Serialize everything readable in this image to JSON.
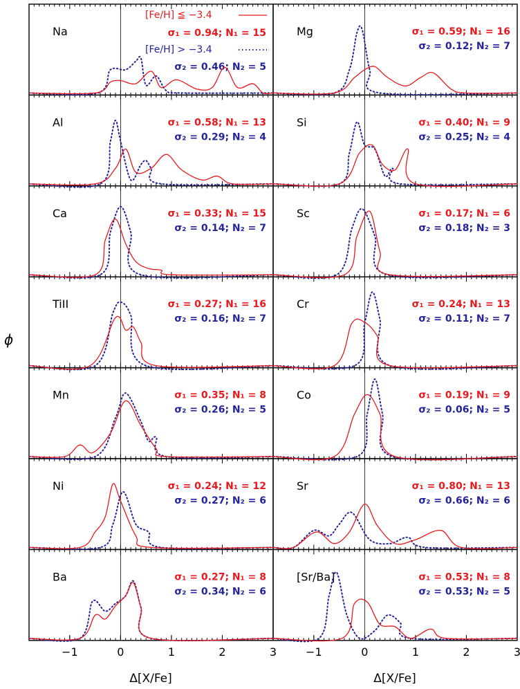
{
  "figure": {
    "ylabel": "ϕ",
    "xlabel": "Δ[X/Fe]",
    "xlim": [
      -1.8,
      3
    ],
    "x_ticks": [
      -1,
      0,
      1,
      2,
      3
    ],
    "x_tick_labels": [
      "−1",
      "0",
      "1",
      "2",
      "3"
    ],
    "colors": {
      "group1": "#e8191e",
      "group2": "#24249a",
      "frame": "#000000"
    },
    "legend": {
      "group1_label": "[Fe/H] ≦ −3.4",
      "group2_label": "[Fe/H] > −3.4"
    }
  },
  "chart_data": [
    {
      "type": "line",
      "element": "Na",
      "sigma1_text": "σ₁ = 0.94; N₁ = 15",
      "sigma2_text": "σ₂ = 0.46; N₂ =  5",
      "series": [
        {
          "x": [
            -0.5,
            -0.2,
            0.0,
            0.3,
            0.6,
            0.8,
            1.1,
            1.5,
            1.8,
            2.05,
            2.3,
            2.6,
            2.8
          ],
          "y": [
            0.0,
            0.14,
            0.16,
            0.12,
            0.28,
            0.07,
            0.17,
            0.05,
            0.07,
            0.33,
            0.07,
            0.12,
            0.0
          ]
        },
        {
          "x": [
            -0.45,
            -0.2,
            0.1,
            0.3,
            0.4,
            0.5,
            0.7,
            0.9,
            1.2
          ],
          "y": [
            0.0,
            0.3,
            0.3,
            0.41,
            0.45,
            0.1,
            0.22,
            0.03,
            0.0
          ]
        }
      ]
    },
    {
      "type": "line",
      "element": "Mg",
      "sigma1_text": "σ₁ = 0.59; N₁ = 16",
      "sigma2_text": "σ₂ = 0.12; N₂ =  7",
      "series": [
        {
          "x": [
            -0.6,
            -0.2,
            0.0,
            0.2,
            0.45,
            0.8,
            1.1,
            1.35,
            1.7,
            2.0
          ],
          "y": [
            0.0,
            0.2,
            0.3,
            0.34,
            0.2,
            0.09,
            0.2,
            0.26,
            0.05,
            0.0
          ]
        },
        {
          "x": [
            -0.6,
            -0.3,
            -0.15,
            -0.05,
            0.1,
            0.3
          ],
          "y": [
            0.0,
            0.3,
            0.78,
            0.82,
            0.3,
            0.0
          ]
        }
      ]
    },
    {
      "type": "line",
      "element": "Al",
      "sigma1_text": "σ₁ = 0.58; N₁ = 13",
      "sigma2_text": "σ₂ = 0.29; N₂ =  4",
      "series": [
        {
          "x": [
            -0.5,
            -0.1,
            0.1,
            0.3,
            0.6,
            0.9,
            1.2,
            1.6,
            1.9,
            2.2
          ],
          "y": [
            0.0,
            0.2,
            0.45,
            0.15,
            0.2,
            0.38,
            0.18,
            0.05,
            0.1,
            0.0
          ]
        },
        {
          "x": [
            -0.4,
            -0.2,
            -0.1,
            0.0,
            0.2,
            0.4,
            0.5,
            0.6,
            0.8
          ],
          "y": [
            0.0,
            0.55,
            0.82,
            0.55,
            0.05,
            0.25,
            0.3,
            0.2,
            0.0
          ]
        }
      ]
    },
    {
      "type": "line",
      "element": "Si",
      "sigma1_text": "σ₁ = 0.40; N₁ =  9",
      "sigma2_text": "σ₂ = 0.25; N₂ =  4",
      "series": [
        {
          "x": [
            -0.5,
            -0.1,
            0.15,
            0.35,
            0.6,
            0.85,
            1.0
          ],
          "y": [
            0.0,
            0.4,
            0.5,
            0.25,
            0.18,
            0.45,
            0.0
          ]
        },
        {
          "x": [
            -0.5,
            -0.3,
            -0.15,
            0.0,
            0.2,
            0.4,
            0.55,
            0.7
          ],
          "y": [
            0.0,
            0.4,
            0.8,
            0.5,
            0.45,
            0.1,
            0.2,
            0.0
          ]
        }
      ]
    },
    {
      "type": "line",
      "element": "Ca",
      "sigma1_text": "σ₁ = 0.33; N₁ = 15",
      "sigma2_text": "σ₂ = 0.14; N₂ =  7",
      "series": [
        {
          "x": [
            -0.5,
            -0.3,
            -0.1,
            0.1,
            0.3,
            0.55,
            0.8,
            1.0
          ],
          "y": [
            0.0,
            0.45,
            0.72,
            0.4,
            0.17,
            0.08,
            0.06,
            0.0
          ]
        },
        {
          "x": [
            -0.4,
            -0.2,
            0.0,
            0.2,
            0.4
          ],
          "y": [
            0.0,
            0.55,
            0.88,
            0.55,
            0.0
          ]
        }
      ]
    },
    {
      "type": "line",
      "element": "Sc",
      "sigma1_text": "σ₁ = 0.17; N₁ =  6",
      "sigma2_text": "σ₂ = 0.18; N₂ =  3",
      "series": [
        {
          "x": [
            -0.4,
            -0.15,
            0.1,
            0.3,
            0.5
          ],
          "y": [
            0.0,
            0.5,
            0.82,
            0.3,
            0.0
          ]
        },
        {
          "x": [
            -0.55,
            -0.25,
            -0.05,
            0.2,
            0.45
          ],
          "y": [
            0.0,
            0.6,
            0.85,
            0.5,
            0.0
          ]
        }
      ]
    },
    {
      "type": "line",
      "element": "TiII",
      "sigma1_text": "σ₁ = 0.27; N₁ = 16",
      "sigma2_text": "σ₂ = 0.16; N₂ =  7",
      "series": [
        {
          "x": [
            -0.6,
            -0.1,
            0.1,
            0.25,
            0.4,
            0.7
          ],
          "y": [
            0.0,
            0.62,
            0.46,
            0.5,
            0.3,
            0.0
          ]
        },
        {
          "x": [
            -0.5,
            -0.15,
            0.0,
            0.2,
            0.5
          ],
          "y": [
            0.0,
            0.68,
            0.82,
            0.65,
            0.0
          ]
        }
      ]
    },
    {
      "type": "line",
      "element": "Cr",
      "sigma1_text": "σ₁ = 0.24; N₁ = 13",
      "sigma2_text": "σ₂ = 0.11; N₂ =  7",
      "series": [
        {
          "x": [
            -0.6,
            -0.25,
            0.0,
            0.25,
            0.5
          ],
          "y": [
            0.0,
            0.55,
            0.56,
            0.38,
            0.0
          ]
        },
        {
          "x": [
            -0.2,
            0.0,
            0.15,
            0.3,
            0.5
          ],
          "y": [
            0.0,
            0.55,
            0.95,
            0.6,
            0.0
          ]
        }
      ]
    },
    {
      "type": "line",
      "element": "Mn",
      "sigma1_text": "σ₁ = 0.35; N₁ =  8",
      "sigma2_text": "σ₂ = 0.26; N₂ =  5",
      "series": [
        {
          "x": [
            -1.1,
            -0.8,
            -0.55,
            -0.2,
            0.1,
            0.4,
            0.7,
            0.9
          ],
          "y": [
            0.0,
            0.15,
            0.05,
            0.3,
            0.72,
            0.4,
            0.1,
            0.0
          ]
        },
        {
          "x": [
            -0.5,
            -0.1,
            0.1,
            0.4,
            0.55,
            0.7,
            0.9
          ],
          "y": [
            0.0,
            0.5,
            0.82,
            0.45,
            0.2,
            0.25,
            0.0
          ]
        }
      ]
    },
    {
      "type": "line",
      "element": "Co",
      "sigma1_text": "σ₁ = 0.19; N₁ =  9",
      "sigma2_text": "σ₂ = 0.06; N₂ =  5",
      "series": [
        {
          "x": [
            -0.6,
            -0.2,
            0.05,
            0.3,
            0.6
          ],
          "y": [
            0.0,
            0.55,
            0.8,
            0.55,
            0.0
          ]
        },
        {
          "x": [
            -0.15,
            0.05,
            0.2,
            0.35,
            0.55
          ],
          "y": [
            0.0,
            0.55,
            1.0,
            0.55,
            0.0
          ]
        }
      ]
    },
    {
      "type": "line",
      "element": "Ni",
      "sigma1_text": "σ₁ = 0.24; N₁ = 12",
      "sigma2_text": "σ₂ = 0.27; N₂ =  6",
      "series": [
        {
          "x": [
            -0.8,
            -0.5,
            -0.3,
            -0.15,
            0.0,
            0.3,
            0.6
          ],
          "y": [
            0.0,
            0.2,
            0.4,
            0.82,
            0.6,
            0.15,
            0.0
          ]
        },
        {
          "x": [
            -0.4,
            -0.15,
            0.05,
            0.3,
            0.55,
            0.8
          ],
          "y": [
            0.0,
            0.3,
            0.72,
            0.3,
            0.2,
            0.0
          ]
        }
      ]
    },
    {
      "type": "line",
      "element": "Sr",
      "sigma1_text": "σ₁ = 0.80; N₁ = 13",
      "sigma2_text": "σ₂ = 0.66; N₂ =  6",
      "series": [
        {
          "x": [
            -1.4,
            -0.95,
            -0.6,
            -0.3,
            0.0,
            0.25,
            0.6,
            1.0,
            1.5,
            1.9
          ],
          "y": [
            0.0,
            0.2,
            0.05,
            0.2,
            0.56,
            0.28,
            0.05,
            0.1,
            0.22,
            0.0
          ]
        },
        {
          "x": [
            -1.4,
            -1.0,
            -0.7,
            -0.5,
            -0.25,
            0.1,
            0.5,
            0.85,
            1.2
          ],
          "y": [
            0.0,
            0.22,
            0.15,
            0.3,
            0.45,
            0.1,
            0.05,
            0.13,
            0.0
          ]
        }
      ]
    },
    {
      "type": "line",
      "element": "Ba",
      "sigma1_text": "σ₁ = 0.27; N₁ =  8",
      "sigma2_text": "σ₂ = 0.34; N₂ =  6",
      "series": [
        {
          "x": [
            -0.8,
            -0.5,
            -0.3,
            -0.1,
            0.1,
            0.25,
            0.4,
            0.6
          ],
          "y": [
            0.0,
            0.3,
            0.25,
            0.42,
            0.55,
            0.72,
            0.4,
            0.0
          ]
        },
        {
          "x": [
            -0.8,
            -0.55,
            -0.3,
            -0.1,
            0.1,
            0.25,
            0.4,
            0.6
          ],
          "y": [
            0.0,
            0.48,
            0.35,
            0.45,
            0.55,
            0.74,
            0.4,
            0.0
          ]
        }
      ]
    },
    {
      "type": "line",
      "element": "[Sr/Ba]",
      "sigma1_text": "σ₁ = 0.53; N₁ =  8",
      "sigma2_text": "σ₂ = 0.53; N₂ =  5",
      "series": [
        {
          "x": [
            -0.45,
            -0.2,
            0.05,
            0.3,
            0.6,
            0.9,
            1.3,
            1.6
          ],
          "y": [
            0.0,
            0.45,
            0.47,
            0.18,
            0.15,
            0.0,
            0.12,
            0.0
          ]
        },
        {
          "x": [
            -0.9,
            -0.7,
            -0.55,
            -0.35,
            -0.1,
            0.2,
            0.45,
            0.7,
            0.9
          ],
          "y": [
            0.0,
            0.55,
            0.85,
            0.3,
            0.0,
            0.1,
            0.3,
            0.2,
            0.0
          ]
        }
      ]
    }
  ]
}
